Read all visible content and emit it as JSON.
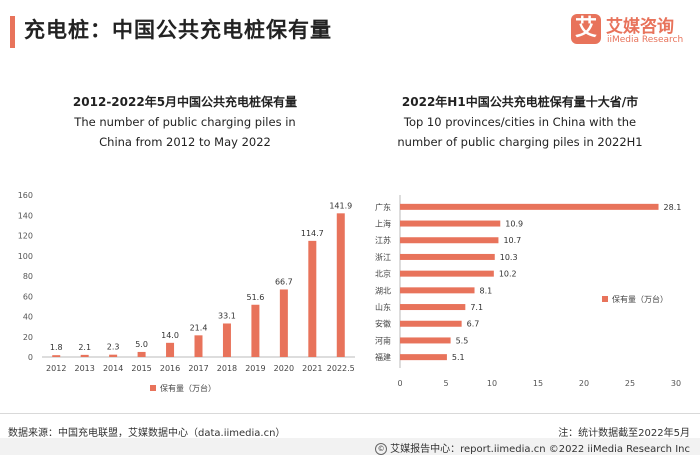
{
  "header": {
    "title": "充电桩：中国公共充电桩保有量",
    "logo_mark": "艾",
    "logo_cn": "艾媒咨询",
    "logo_en": "iiMedia Research"
  },
  "chart_data": [
    {
      "type": "bar",
      "title_cn": "2012-2022年5月中国公共充电桩保有量",
      "title_en_line1": "The number of public charging piles in",
      "title_en_line2": "China from 2012 to May 2022",
      "categories": [
        "2012",
        "2013",
        "2014",
        "2015",
        "2016",
        "2017",
        "2018",
        "2019",
        "2020",
        "2021",
        "2022.5"
      ],
      "values": [
        1.8,
        2.1,
        2.3,
        5.0,
        14.0,
        21.4,
        33.1,
        51.6,
        66.7,
        114.7,
        141.9
      ],
      "value_labels": [
        "1.8",
        "2.1",
        "2.3",
        "5.0",
        "14.0",
        "21.4",
        "33.1",
        "51.6",
        "66.7",
        "114.7",
        "141.9"
      ],
      "yticks": [
        "0",
        "20",
        "40",
        "60",
        "80",
        "100",
        "120",
        "140",
        "160"
      ],
      "ylim": [
        0,
        160
      ],
      "legend": "保有量（万台）",
      "color": "#e8735b"
    },
    {
      "type": "bar",
      "orientation": "horizontal",
      "title_cn": "2022年H1中国公共充电桩保有量十大省/市",
      "title_en_line1": "Top 10 provinces/cities in China with the",
      "title_en_line2": "number of public charging piles in 2022H1",
      "categories": [
        "广东",
        "上海",
        "江苏",
        "浙江",
        "北京",
        "湖北",
        "山东",
        "安徽",
        "河南",
        "福建"
      ],
      "values": [
        28.1,
        10.9,
        10.7,
        10.3,
        10.2,
        8.1,
        7.1,
        6.7,
        5.5,
        5.1
      ],
      "value_labels": [
        "28.1",
        "10.9",
        "10.7",
        "10.3",
        "10.2",
        "8.1",
        "7.1",
        "6.7",
        "5.5",
        "5.1"
      ],
      "xticks": [
        "0",
        "5",
        "10",
        "15",
        "20",
        "25",
        "30"
      ],
      "xlim": [
        0,
        30
      ],
      "legend": "保有量（万台）",
      "color": "#e8735b"
    }
  ],
  "footer": {
    "source": "数据来源：中国充电联盟，艾媒数据中心（data.iimedia.cn）",
    "note": "注：统计数据截至2022年5月",
    "icon": "©",
    "copyright": "艾媒报告中心：report.iimedia.cn   ©2022  iiMedia Research  Inc"
  }
}
